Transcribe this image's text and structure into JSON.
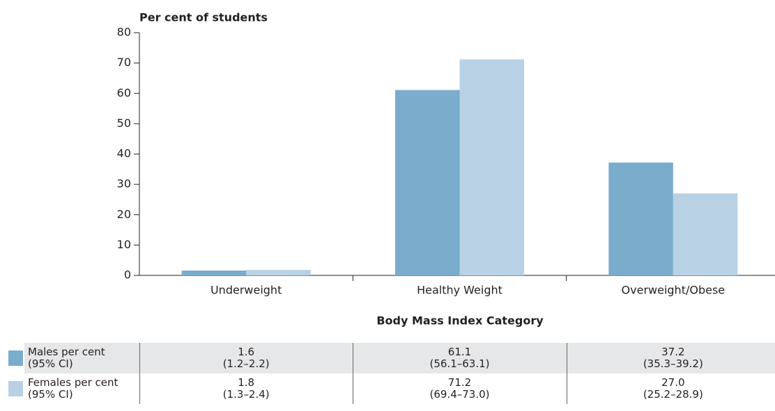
{
  "chart_data": {
    "type": "bar",
    "y_axis_label": "Per cent of students",
    "x_axis_label": "Body Mass Index Category",
    "categories": [
      "Underweight",
      "Healthy Weight",
      "Overweight/Obese"
    ],
    "series": [
      {
        "name": "Males per cent (95% CI)",
        "color": "#7aaccc",
        "values": [
          1.6,
          61.1,
          37.2
        ],
        "value_labels": [
          "1.6",
          "61.1",
          "37.2"
        ],
        "ci": [
          "(1.2–2.2)",
          "(56.1–63.1)",
          "(35.3–39.2)"
        ]
      },
      {
        "name": "Females per cent (95% CI)",
        "color": "#b8d1e4",
        "values": [
          1.8,
          71.2,
          27.0
        ],
        "value_labels": [
          "1.8",
          "71.2",
          "27.0"
        ],
        "ci": [
          "(1.3–2.4)",
          "(69.4–73.0)",
          "(25.2–28.9)"
        ]
      }
    ],
    "ylim": [
      0,
      80
    ],
    "yticks": [
      0,
      10,
      20,
      30,
      40,
      50,
      60,
      70,
      80
    ],
    "grid": false
  }
}
